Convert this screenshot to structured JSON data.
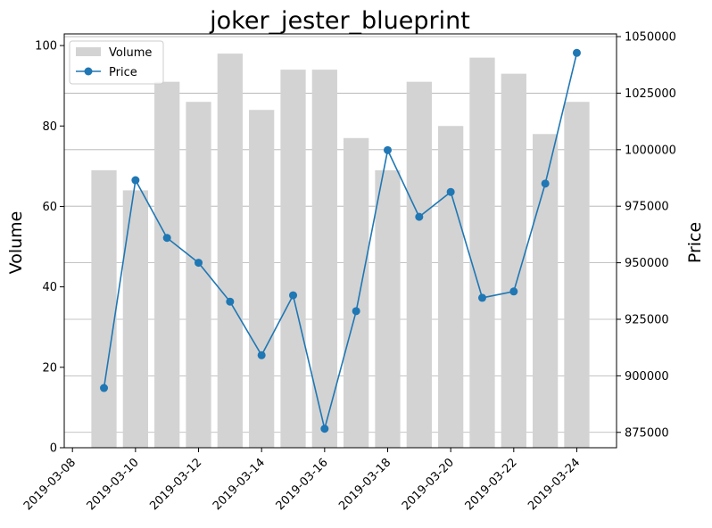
{
  "chart_data": {
    "type": "bar+line",
    "title": "joker_jester_blueprint",
    "xlabel": "",
    "ylabel_left": "Volume",
    "ylabel_right": "Price",
    "dates": [
      "2019-03-09",
      "2019-03-10",
      "2019-03-11",
      "2019-03-12",
      "2019-03-13",
      "2019-03-14",
      "2019-03-15",
      "2019-03-16",
      "2019-03-17",
      "2019-03-18",
      "2019-03-19",
      "2019-03-20",
      "2019-03-21",
      "2019-03-22",
      "2019-03-23",
      "2019-03-24"
    ],
    "x_ticks": [
      "2019-03-08",
      "2019-03-10",
      "2019-03-12",
      "2019-03-14",
      "2019-03-16",
      "2019-03-18",
      "2019-03-20",
      "2019-03-22",
      "2019-03-24"
    ],
    "series": [
      {
        "name": "Volume",
        "axis": "left",
        "kind": "bar",
        "color": "#d3d3d3",
        "values": [
          69,
          64,
          91,
          86,
          98,
          84,
          94,
          94,
          77,
          69,
          91,
          80,
          97,
          93,
          78,
          86
        ]
      },
      {
        "name": "Price",
        "axis": "right",
        "kind": "line",
        "color": "#1f77b4",
        "values": [
          894600,
          986500,
          961000,
          950000,
          932800,
          909100,
          935600,
          876600,
          928600,
          999800,
          970300,
          981300,
          934500,
          937300,
          985000,
          1042800
        ]
      }
    ],
    "y_left": {
      "range": [
        0,
        102.9
      ],
      "ticks": [
        0,
        20,
        40,
        60,
        80,
        100
      ]
    },
    "y_right": {
      "range": [
        868200,
        1051200
      ],
      "ticks": [
        875000,
        900000,
        925000,
        950000,
        975000,
        1000000,
        1025000,
        1050000
      ]
    },
    "x_range": [
      "2019-03-07T17:45",
      "2019-03-25T06:15"
    ],
    "grid": {
      "right_axis_horizontal": true
    },
    "legend": {
      "placement": "top-left",
      "entries": [
        "Volume",
        "Price"
      ]
    }
  }
}
